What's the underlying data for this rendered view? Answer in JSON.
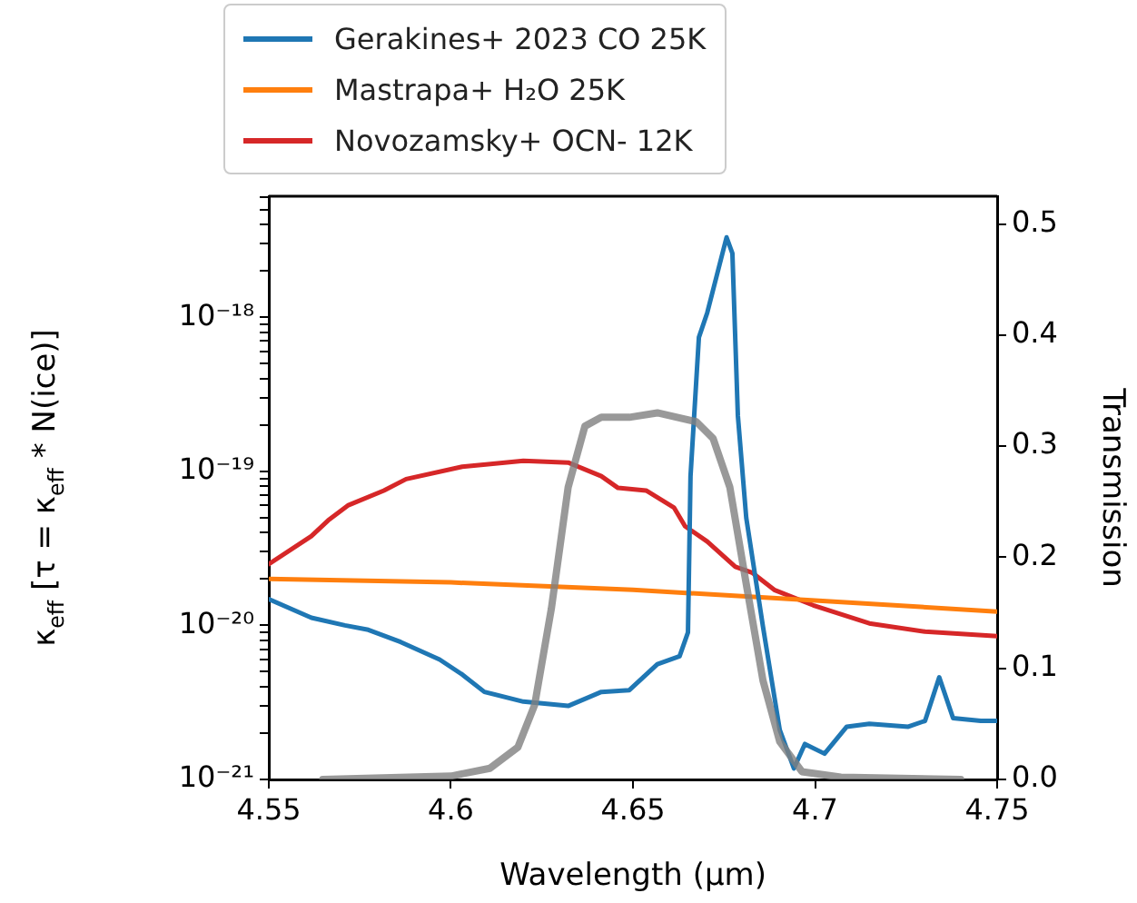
{
  "chart_data": {
    "type": "line",
    "xlabel": "Wavelength (μm)",
    "ylabel": "κ$_{eff}$ [τ = κ$_{eff}$ * N(ice)]",
    "y2label": "Transmission",
    "log": "y",
    "grid": false,
    "legend": "top",
    "marker": "none",
    "line_style": "solid",
    "xlim": [
      4.55,
      4.75
    ],
    "xticks": [
      4.55,
      4.6,
      4.65,
      4.7,
      4.75
    ],
    "ylim": [
      1e-21,
      6.1e-18
    ],
    "yticks": [
      {
        "value": 1e-21,
        "label": "10⁻²¹"
      },
      {
        "value": 2e-21,
        "label": null
      },
      {
        "value": 3e-21,
        "label": null
      },
      {
        "value": 4e-21,
        "label": null
      },
      {
        "value": 5e-21,
        "label": null
      },
      {
        "value": 6e-21,
        "label": null
      },
      {
        "value": 7e-21,
        "label": null
      },
      {
        "value": 8e-21,
        "label": null
      },
      {
        "value": 9e-21,
        "label": null
      },
      {
        "value": 1e-20,
        "label": "10⁻²⁰"
      },
      {
        "value": 2e-20,
        "label": null
      },
      {
        "value": 3e-20,
        "label": null
      },
      {
        "value": 4e-20,
        "label": null
      },
      {
        "value": 5e-20,
        "label": null
      },
      {
        "value": 6e-20,
        "label": null
      },
      {
        "value": 7e-20,
        "label": null
      },
      {
        "value": 8e-20,
        "label": null
      },
      {
        "value": 9e-20,
        "label": null
      },
      {
        "value": 1e-19,
        "label": "10⁻¹⁹"
      },
      {
        "value": 2e-19,
        "label": null
      },
      {
        "value": 3e-19,
        "label": null
      },
      {
        "value": 4e-19,
        "label": null
      },
      {
        "value": 5e-19,
        "label": null
      },
      {
        "value": 6e-19,
        "label": null
      },
      {
        "value": 7e-19,
        "label": null
      },
      {
        "value": 8e-19,
        "label": null
      },
      {
        "value": 9e-19,
        "label": null
      },
      {
        "value": 1e-18,
        "label": "10⁻¹⁸"
      },
      {
        "value": 2e-18,
        "label": null
      },
      {
        "value": 3e-18,
        "label": null
      },
      {
        "value": 4e-18,
        "label": null
      },
      {
        "value": 5e-18,
        "label": null
      },
      {
        "value": 6e-18,
        "label": null
      }
    ],
    "y2lim": [
      0,
      0.525
    ],
    "y2ticks": [
      {
        "value": 0,
        "label": "0.0"
      },
      0.1,
      0.2,
      0.3,
      0.4,
      0.5
    ],
    "series": [
      {
        "name": "Gerakines+ 2023 CO 25K",
        "color": "#1f77b4",
        "x": [
          4.55,
          4.5617,
          4.5709,
          4.577,
          4.5862,
          4.5969,
          4.6031,
          4.6092,
          4.6199,
          4.6322,
          4.6413,
          4.649,
          4.6567,
          4.6628,
          4.6651,
          4.6658,
          4.6681,
          4.6704,
          4.6757,
          4.6773,
          4.6788,
          4.6811,
          4.6857,
          4.6903,
          4.6942,
          4.6972,
          4.7026,
          4.7087,
          4.7149,
          4.7256,
          4.7302,
          4.7341,
          4.7379,
          4.7455,
          4.75
        ],
        "values": [
          1.48e-20,
          1.12e-20,
          1e-20,
          9.4e-21,
          7.8e-21,
          6e-21,
          4.8e-21,
          3.7e-21,
          3.2e-21,
          3e-21,
          3.7e-21,
          3.8e-21,
          5.6e-21,
          6.3e-21,
          9e-21,
          9.3e-20,
          7.4e-19,
          1.07e-18,
          3.3e-18,
          2.6e-18,
          2.3e-19,
          5e-20,
          9.8e-21,
          2.1e-21,
          1.18e-21,
          1.7e-21,
          1.47e-21,
          2.2e-21,
          2.3e-21,
          2.2e-21,
          2.4e-21,
          4.6e-21,
          2.5e-21,
          2.4e-21,
          2.4e-21
        ]
      },
      {
        "name": "Mastrapa+ H₂O 25K",
        "color": "#ff7f0e",
        "x": [
          4.55,
          4.6,
          4.65,
          4.7,
          4.75
        ],
        "values": [
          2e-20,
          1.9e-20,
          1.7e-20,
          1.45e-20,
          1.23e-20
        ]
      },
      {
        "name": "Novozamsky+ OCN- 12K",
        "color": "#d62728",
        "x": [
          4.55,
          4.5617,
          4.5663,
          4.5717,
          4.5816,
          4.5877,
          4.6031,
          4.6199,
          4.6322,
          4.6413,
          4.6459,
          4.6536,
          4.6613,
          4.6643,
          4.6704,
          4.6781,
          4.6827,
          4.6888,
          4.6995,
          4.7149,
          4.7302,
          4.75
        ],
        "values": [
          2.5e-20,
          3.8e-20,
          4.8e-20,
          6e-20,
          7.5e-20,
          8.9e-20,
          1.07e-19,
          1.17e-19,
          1.14e-19,
          9.3e-20,
          7.8e-20,
          7.5e-20,
          5.8e-20,
          4.4e-20,
          3.5e-20,
          2.4e-20,
          2.2e-20,
          1.7e-20,
          1.35e-20,
          1.03e-20,
          9.1e-21,
          8.5e-21
        ]
      },
      {
        "color": "#808080",
        "axis": "y2",
        "x": [
          4.5648,
          4.6,
          4.6107,
          4.6184,
          4.623,
          4.6276,
          4.6322,
          4.6368,
          4.6413,
          4.649,
          4.6567,
          4.6674,
          4.672,
          4.6766,
          4.6811,
          4.6857,
          4.6903,
          4.6964,
          4.7071,
          4.74
        ],
        "values": [
          0.0,
          0.003,
          0.01,
          0.029,
          0.067,
          0.154,
          0.263,
          0.318,
          0.326,
          0.326,
          0.33,
          0.322,
          0.307,
          0.263,
          0.176,
          0.089,
          0.034,
          0.007,
          0.002,
          0.0
        ]
      }
    ]
  }
}
